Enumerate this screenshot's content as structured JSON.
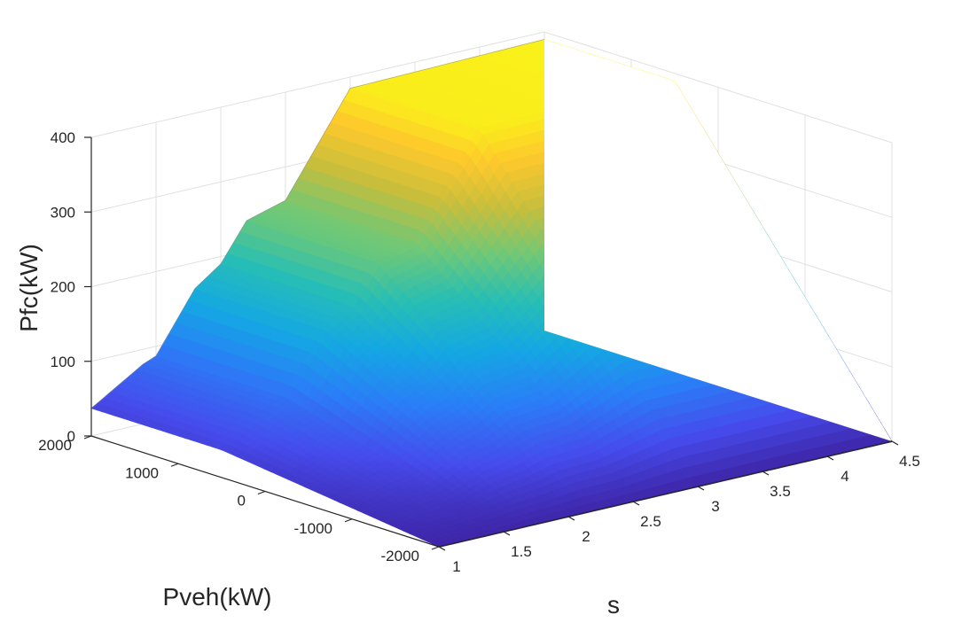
{
  "chart_data": {
    "type": "surface",
    "zlabel": "Pfc(kW)",
    "ylabel": "Pveh(kW)",
    "xlabel": "s",
    "zlim": [
      0,
      400
    ],
    "ylim": [
      -2000,
      2000
    ],
    "xlim": [
      1,
      4.5
    ],
    "z_ticks": [
      "0",
      "100",
      "200",
      "300",
      "400"
    ],
    "y_ticks": [
      "-2000",
      "-1000",
      "0",
      "1000",
      "2000"
    ],
    "x_ticks": [
      "1",
      "1.5",
      "2",
      "2.5",
      "3",
      "3.5",
      "4",
      "4.5"
    ],
    "grid": true,
    "colormap": "parula",
    "surface": {
      "description_of_shape": "Pfc rises with s in plateaus and is roughly constant along Pveh at the back edge; front edge (Pveh=-2000) stays near 0",
      "s_steps": [
        1.0,
        1.4,
        1.5,
        1.8,
        2.0,
        2.2,
        2.5,
        3.0,
        4.5
      ],
      "pfc_steps_at_back": [
        37,
        80,
        87,
        165,
        190,
        240,
        255,
        385,
        390
      ]
    },
    "colors": {
      "low": "#3e26a8",
      "mid": "#2ab6c4",
      "high": "#f9fb15",
      "grid": "#e0e0e0",
      "axis": "#262626"
    }
  }
}
